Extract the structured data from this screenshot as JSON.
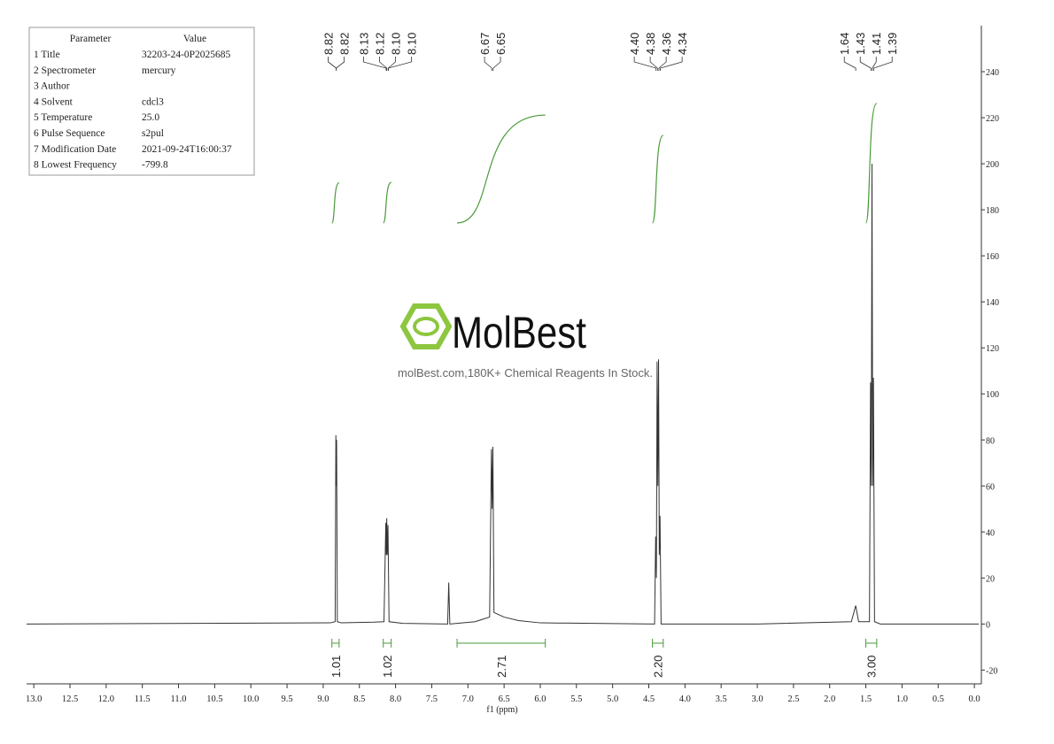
{
  "chart_data": {
    "type": "line",
    "xlabel": "f1 (ppm)",
    "xlim": [
      13.1,
      -0.06
    ],
    "xticks": [
      {
        "value": 13,
        "label": "13.0"
      },
      12.5,
      {
        "value": 12,
        "label": "12.0"
      },
      11.5,
      {
        "value": 11,
        "label": "11.0"
      },
      10.5,
      {
        "value": 10,
        "label": "10.0"
      },
      9.5,
      {
        "value": 9,
        "label": "9.0"
      },
      8.5,
      {
        "value": 8,
        "label": "8.0"
      },
      7.5,
      {
        "value": 7,
        "label": "7.0"
      },
      6.5,
      {
        "value": 6,
        "label": "6.0"
      },
      5.5,
      {
        "value": 5,
        "label": "5.0"
      },
      4.5,
      {
        "value": 4,
        "label": "4.0"
      },
      3.5,
      {
        "value": 3,
        "label": "3.0"
      },
      2.5,
      {
        "value": 2,
        "label": "2.0"
      },
      1.5,
      {
        "value": 1,
        "label": "1.0"
      },
      0.5,
      {
        "value": 0,
        "label": "0.0"
      }
    ],
    "ylim": [
      -26,
      260
    ],
    "yticks": [
      -20,
      0,
      20,
      40,
      60,
      80,
      100,
      120,
      140,
      160,
      180,
      200,
      220,
      240
    ],
    "series": [
      {
        "color": "#333333",
        "x": [
          13.1,
          8.9,
          8.835,
          8.825,
          8.82,
          8.815,
          8.805,
          8.75,
          8.3,
          8.16,
          8.135,
          8.128,
          8.122,
          8.115,
          8.105,
          8.09,
          7.9,
          7.28,
          7.265,
          7.25,
          6.9,
          6.8,
          6.7,
          6.675,
          6.665,
          6.655,
          6.64,
          6.5,
          6.3,
          6.0,
          4.42,
          4.405,
          4.395,
          4.385,
          4.375,
          4.365,
          4.355,
          4.345,
          4.33,
          3.0,
          1.7,
          1.64,
          1.6,
          1.45,
          1.435,
          1.425,
          1.415,
          1.405,
          1.395,
          1.38,
          1.3,
          0,
          -0.06
        ],
        "values": [
          0,
          0.5,
          1,
          82,
          60,
          80,
          1,
          0.5,
          0.8,
          1,
          44,
          30,
          46,
          30,
          43,
          1,
          0.3,
          0,
          18,
          0,
          1,
          2,
          3,
          76,
          50,
          77,
          5,
          3,
          1.5,
          0.5,
          0,
          38,
          20,
          114,
          60,
          115,
          30,
          47,
          0,
          0,
          1,
          8,
          1,
          1,
          105,
          60,
          200,
          60,
          107,
          1,
          0,
          0,
          0
        ]
      }
    ],
    "peak_labels": [
      8.82,
      8.82,
      8.13,
      8.12,
      {
        "value": 8.1,
        "label": "8.10"
      },
      {
        "value": 8.1,
        "label": "8.10"
      },
      6.67,
      6.65,
      {
        "value": 4.4,
        "label": "4.40"
      },
      4.38,
      4.36,
      4.34,
      1.64,
      1.43,
      1.41,
      1.39
    ],
    "integrals": {
      "ranges": [
        [
          8.88,
          8.78
        ],
        [
          8.17,
          8.06
        ],
        [
          7.15,
          5.93
        ],
        [
          4.45,
          4.3
        ],
        [
          1.5,
          1.35
        ]
      ],
      "values": [
        1.01,
        1.02,
        2.71,
        2.2,
        3
      ],
      "value_labels": [
        "1.01",
        "1.02",
        "2.71",
        "2.20",
        "3.00"
      ]
    }
  },
  "parameters": {
    "header": [
      "Parameter",
      "Value"
    ],
    "rows": [
      [
        "1 Title",
        "32203-24-0P2025685"
      ],
      [
        "2 Spectrometer",
        "mercury"
      ],
      [
        "3 Author"
      ],
      [
        "4 Solvent",
        "cdcl3"
      ],
      [
        "5 Temperature",
        "25.0"
      ],
      [
        "6 Pulse Sequence",
        "s2pul"
      ],
      [
        "7 Modification Date",
        "2021-09-24T16:00:37"
      ],
      [
        "8 Lowest Frequency",
        "-799.8"
      ]
    ]
  },
  "watermark": {
    "logo": "MolBest",
    "tagline": "molBest.com,180K+ Chemical Reagents In Stock."
  }
}
